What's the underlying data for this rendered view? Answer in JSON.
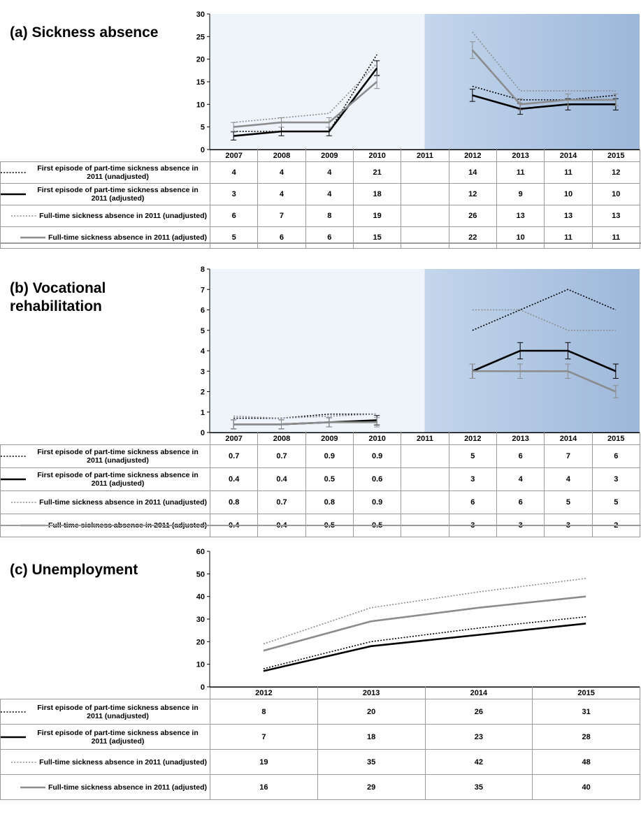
{
  "chart_data": [
    {
      "type": "line",
      "title": "(a) Sickness absence",
      "x": [
        "2007",
        "2008",
        "2009",
        "2010",
        "2011",
        "2012",
        "2013",
        "2014",
        "2015"
      ],
      "ylim": [
        0,
        30
      ],
      "yticks": [
        0,
        5,
        10,
        15,
        20,
        25,
        30
      ],
      "shaded_regions": [
        {
          "from": "2007",
          "to": "2011",
          "color": "#eef4fa"
        },
        {
          "from": "2011",
          "to": "2015",
          "color": "#bfd2e8"
        }
      ],
      "series": [
        {
          "name": "First episode of part-time sickness absence in 2011 (unadjusted)",
          "style": "dotted",
          "color": "#000000",
          "values": [
            4,
            4,
            4,
            21,
            null,
            14,
            11,
            11,
            12
          ]
        },
        {
          "name": "First episode of part-time sickness absence in 2011 (adjusted)",
          "style": "solid",
          "color": "#000000",
          "values": [
            3,
            4,
            4,
            18,
            null,
            12,
            9,
            10,
            10
          ],
          "errorbars": true
        },
        {
          "name": "Full-time sickness absence in 2011 (unadjusted)",
          "style": "dotted",
          "color": "#8c8c8c",
          "values": [
            6,
            7,
            8,
            19,
            null,
            26,
            13,
            13,
            13
          ]
        },
        {
          "name": "Full-time sickness absence in 2011 (adjusted)",
          "style": "solid",
          "color": "#8c8c8c",
          "values": [
            5,
            6,
            6,
            15,
            null,
            22,
            10,
            11,
            11
          ],
          "errorbars": true
        }
      ]
    },
    {
      "type": "line",
      "title": "(b) Vocational\nrehabilitation",
      "x": [
        "2007",
        "2008",
        "2009",
        "2010",
        "2011",
        "2012",
        "2013",
        "2014",
        "2015"
      ],
      "ylim": [
        0,
        8
      ],
      "yticks": [
        0,
        1,
        2,
        3,
        4,
        5,
        6,
        7,
        8
      ],
      "shaded_regions": [
        {
          "from": "2007",
          "to": "2011",
          "color": "#eef4fa"
        },
        {
          "from": "2011",
          "to": "2015",
          "color": "#bfd2e8"
        }
      ],
      "series": [
        {
          "name": "First episode of part-time sickness absence in 2011 (unadjusted)",
          "style": "dotted",
          "color": "#000000",
          "values": [
            "0.7",
            "0.7",
            "0.9",
            "0.9",
            null,
            "5",
            "6",
            "7",
            "6"
          ]
        },
        {
          "name": "First episode of part-time sickness absence in 2011 (adjusted)",
          "style": "solid",
          "color": "#000000",
          "values": [
            "0.4",
            "0.4",
            "0.5",
            "0.6",
            null,
            "3",
            "4",
            "4",
            "3"
          ],
          "errorbars": true
        },
        {
          "name": "Full-time sickness absence in 2011 (unadjusted)",
          "style": "dotted",
          "color": "#8c8c8c",
          "values": [
            "0.8",
            "0.7",
            "0.8",
            "0.9",
            null,
            "6",
            "6",
            "5",
            "5"
          ]
        },
        {
          "name": "Full-time sickness absence in 2011 (adjusted)",
          "style": "solid",
          "color": "#8c8c8c",
          "values": [
            "0.4",
            "0.4",
            "0.5",
            "0.5",
            null,
            "3",
            "3",
            "3",
            "2"
          ],
          "errorbars": true
        }
      ]
    },
    {
      "type": "line",
      "title": "(c) Unemployment",
      "x": [
        "2012",
        "2013",
        "2014",
        "2015"
      ],
      "ylim": [
        0,
        60
      ],
      "yticks": [
        0,
        10,
        20,
        30,
        40,
        50,
        60
      ],
      "series": [
        {
          "name": "First episode of part-time sickness absence in 2011 (unadjusted)",
          "style": "dotted",
          "color": "#000000",
          "values": [
            8,
            20,
            26,
            31
          ]
        },
        {
          "name": "First episode of part-time sickness absence in 2011 (adjusted)",
          "style": "solid",
          "color": "#000000",
          "values": [
            7,
            18,
            23,
            28
          ]
        },
        {
          "name": "Full-time sickness absence in 2011 (unadjusted)",
          "style": "dotted",
          "color": "#8c8c8c",
          "values": [
            19,
            35,
            42,
            48
          ]
        },
        {
          "name": "Full-time sickness absence in 2011 (adjusted)",
          "style": "solid",
          "color": "#8c8c8c",
          "values": [
            16,
            29,
            35,
            40
          ]
        }
      ]
    }
  ]
}
